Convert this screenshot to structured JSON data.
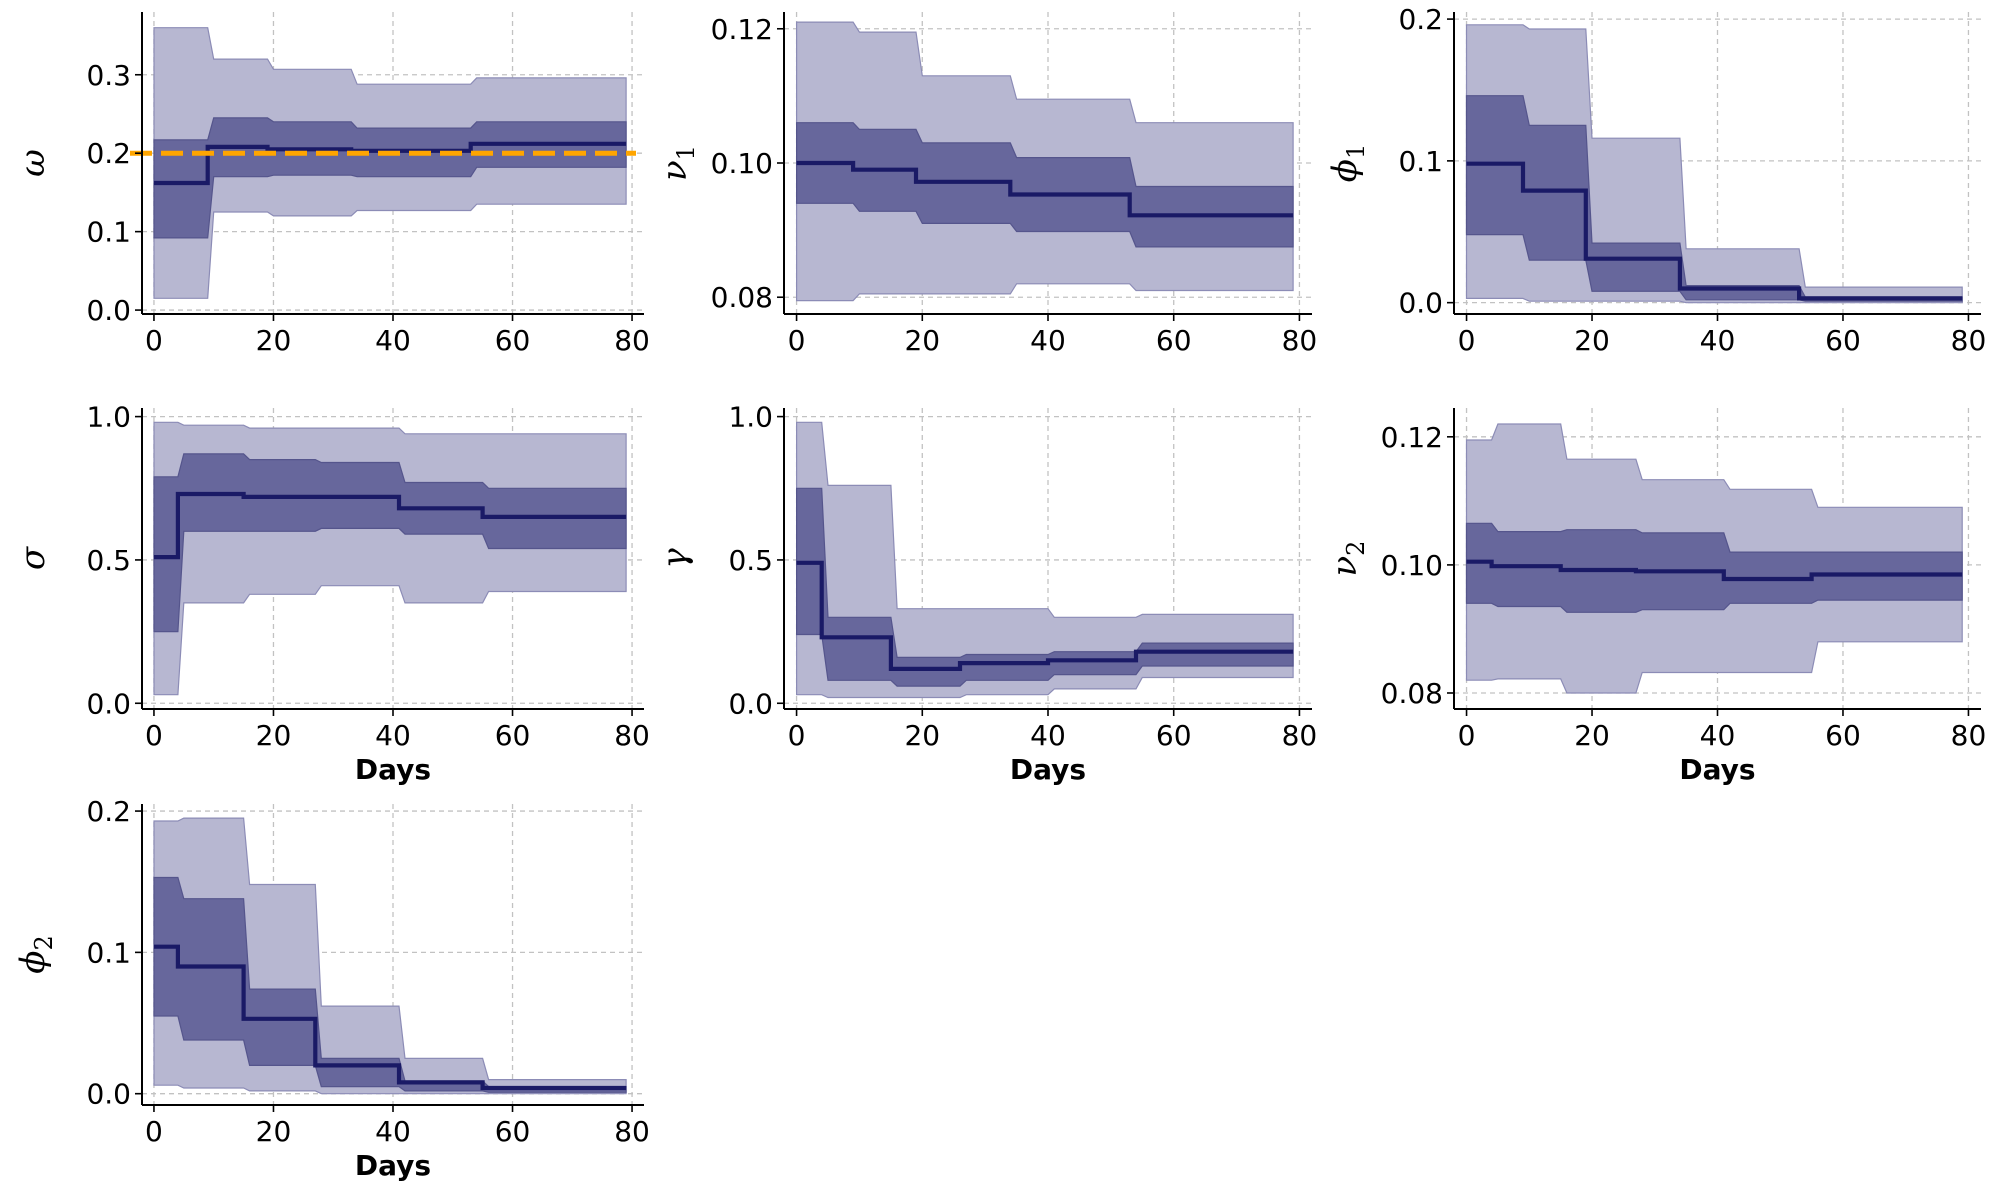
{
  "colors": {
    "outer_band": "#b7b7d1",
    "inner_band": "#67679c",
    "median": "#1a1a66",
    "truth": "#ffa500"
  },
  "chart_data": [
    {
      "type": "area",
      "symbol": "ω",
      "sub": "",
      "xlabel": "",
      "xlim": [
        -2,
        82
      ],
      "xticks": [
        "0",
        "20",
        "40",
        "60",
        "80"
      ],
      "ylim": [
        -0.005,
        0.38
      ],
      "yticks": [
        "0.0",
        "0.1",
        "0.2",
        "0.3"
      ],
      "yticks_v": [
        0.0,
        0.1,
        0.2,
        0.3
      ],
      "truth": 0.2,
      "segments": [
        {
          "x0": 0,
          "x1": 9,
          "med": 0.162,
          "lo50": 0.092,
          "hi50": 0.217,
          "lo95": 0.015,
          "hi95": 0.36
        },
        {
          "x0": 10,
          "x1": 19,
          "med": 0.208,
          "lo50": 0.17,
          "hi50": 0.245,
          "lo95": 0.125,
          "hi95": 0.32
        },
        {
          "x0": 20,
          "x1": 33,
          "med": 0.205,
          "lo50": 0.172,
          "hi50": 0.24,
          "lo95": 0.12,
          "hi95": 0.307
        },
        {
          "x0": 34,
          "x1": 53,
          "med": 0.203,
          "lo50": 0.17,
          "hi50": 0.232,
          "lo95": 0.127,
          "hi95": 0.288
        },
        {
          "x0": 54,
          "x1": 79,
          "med": 0.212,
          "lo50": 0.182,
          "hi50": 0.24,
          "lo95": 0.135,
          "hi95": 0.296
        }
      ]
    },
    {
      "type": "area",
      "symbol": "ν",
      "sub": "1",
      "xlabel": "",
      "xlim": [
        -2,
        82
      ],
      "xticks": [
        "0",
        "20",
        "40",
        "60",
        "80"
      ],
      "ylim": [
        0.0775,
        0.1225
      ],
      "yticks": [
        "0.08",
        "0.10",
        "0.12"
      ],
      "yticks_v": [
        0.08,
        0.1,
        0.12
      ],
      "segments": [
        {
          "x0": 0,
          "x1": 9,
          "med": 0.1,
          "lo50": 0.094,
          "hi50": 0.106,
          "lo95": 0.0795,
          "hi95": 0.121
        },
        {
          "x0": 10,
          "x1": 19,
          "med": 0.099,
          "lo50": 0.0928,
          "hi50": 0.105,
          "lo95": 0.0805,
          "hi95": 0.1195
        },
        {
          "x0": 20,
          "x1": 34,
          "med": 0.0972,
          "lo50": 0.091,
          "hi50": 0.103,
          "lo95": 0.0805,
          "hi95": 0.113
        },
        {
          "x0": 35,
          "x1": 53,
          "med": 0.0953,
          "lo50": 0.0898,
          "hi50": 0.1008,
          "lo95": 0.082,
          "hi95": 0.1095
        },
        {
          "x0": 54,
          "x1": 79,
          "med": 0.0922,
          "lo50": 0.0875,
          "hi50": 0.0965,
          "lo95": 0.081,
          "hi95": 0.106
        }
      ]
    },
    {
      "type": "area",
      "symbol": "ϕ",
      "sub": "1",
      "xlabel": "",
      "xlim": [
        -2,
        82
      ],
      "xticks": [
        "0",
        "20",
        "40",
        "60",
        "80"
      ],
      "ylim": [
        -0.008,
        0.205
      ],
      "yticks": [
        "0.0",
        "0.1",
        "0.2"
      ],
      "yticks_v": [
        0.0,
        0.1,
        0.2
      ],
      "segments": [
        {
          "x0": 0,
          "x1": 9,
          "med": 0.098,
          "lo50": 0.048,
          "hi50": 0.146,
          "lo95": 0.003,
          "hi95": 0.196
        },
        {
          "x0": 10,
          "x1": 19,
          "med": 0.079,
          "lo50": 0.03,
          "hi50": 0.125,
          "lo95": 0.001,
          "hi95": 0.193
        },
        {
          "x0": 20,
          "x1": 34,
          "med": 0.031,
          "lo50": 0.008,
          "hi50": 0.042,
          "lo95": 0.001,
          "hi95": 0.116
        },
        {
          "x0": 35,
          "x1": 53,
          "med": 0.01,
          "lo50": 0.002,
          "hi50": 0.012,
          "lo95": 0.0,
          "hi95": 0.038
        },
        {
          "x0": 54,
          "x1": 79,
          "med": 0.003,
          "lo50": 0.001,
          "hi50": 0.004,
          "lo95": 0.0,
          "hi95": 0.011
        }
      ]
    },
    {
      "type": "area",
      "symbol": "σ",
      "sub": "",
      "xlabel": "Days",
      "xlim": [
        -2,
        82
      ],
      "xticks": [
        "0",
        "20",
        "40",
        "60",
        "80"
      ],
      "ylim": [
        -0.02,
        1.03
      ],
      "yticks": [
        "0.0",
        "0.5",
        "1.0"
      ],
      "yticks_v": [
        0.0,
        0.5,
        1.0
      ],
      "segments": [
        {
          "x0": 0,
          "x1": 4,
          "med": 0.51,
          "lo50": 0.25,
          "hi50": 0.79,
          "lo95": 0.03,
          "hi95": 0.98
        },
        {
          "x0": 5,
          "x1": 15,
          "med": 0.73,
          "lo50": 0.6,
          "hi50": 0.87,
          "lo95": 0.35,
          "hi95": 0.97
        },
        {
          "x0": 16,
          "x1": 27,
          "med": 0.72,
          "lo50": 0.6,
          "hi50": 0.85,
          "lo95": 0.38,
          "hi95": 0.96
        },
        {
          "x0": 28,
          "x1": 41,
          "med": 0.72,
          "lo50": 0.61,
          "hi50": 0.84,
          "lo95": 0.41,
          "hi95": 0.96
        },
        {
          "x0": 42,
          "x1": 55,
          "med": 0.68,
          "lo50": 0.59,
          "hi50": 0.77,
          "lo95": 0.35,
          "hi95": 0.94
        },
        {
          "x0": 56,
          "x1": 79,
          "med": 0.65,
          "lo50": 0.54,
          "hi50": 0.75,
          "lo95": 0.39,
          "hi95": 0.94
        }
      ]
    },
    {
      "type": "area",
      "symbol": "γ",
      "sub": "",
      "xlabel": "Days",
      "xlim": [
        -2,
        82
      ],
      "xticks": [
        "0",
        "20",
        "40",
        "60",
        "80"
      ],
      "ylim": [
        -0.02,
        1.03
      ],
      "yticks": [
        "0.0",
        "0.5",
        "1.0"
      ],
      "yticks_v": [
        0.0,
        0.5,
        1.0
      ],
      "segments": [
        {
          "x0": 0,
          "x1": 4,
          "med": 0.49,
          "lo50": 0.24,
          "hi50": 0.75,
          "lo95": 0.03,
          "hi95": 0.98
        },
        {
          "x0": 5,
          "x1": 15,
          "med": 0.23,
          "lo50": 0.08,
          "hi50": 0.3,
          "lo95": 0.02,
          "hi95": 0.76
        },
        {
          "x0": 16,
          "x1": 26,
          "med": 0.12,
          "lo50": 0.06,
          "hi50": 0.16,
          "lo95": 0.02,
          "hi95": 0.33
        },
        {
          "x0": 27,
          "x1": 40,
          "med": 0.14,
          "lo50": 0.08,
          "hi50": 0.17,
          "lo95": 0.03,
          "hi95": 0.33
        },
        {
          "x0": 41,
          "x1": 54,
          "med": 0.15,
          "lo50": 0.1,
          "hi50": 0.18,
          "lo95": 0.05,
          "hi95": 0.3
        },
        {
          "x0": 55,
          "x1": 79,
          "med": 0.18,
          "lo50": 0.13,
          "hi50": 0.21,
          "lo95": 0.09,
          "hi95": 0.31
        }
      ]
    },
    {
      "type": "area",
      "symbol": "ν",
      "sub": "2",
      "xlabel": "Days",
      "xlim": [
        -2,
        82
      ],
      "xticks": [
        "0",
        "20",
        "40",
        "60",
        "80"
      ],
      "ylim": [
        0.0775,
        0.1245
      ],
      "yticks": [
        "0.08",
        "0.10",
        "0.12"
      ],
      "yticks_v": [
        0.08,
        0.1,
        0.12
      ],
      "segments": [
        {
          "x0": 0,
          "x1": 4,
          "med": 0.1005,
          "lo50": 0.094,
          "hi50": 0.1065,
          "lo95": 0.082,
          "hi95": 0.1195
        },
        {
          "x0": 5,
          "x1": 15,
          "med": 0.0998,
          "lo50": 0.0935,
          "hi50": 0.1052,
          "lo95": 0.0822,
          "hi95": 0.122
        },
        {
          "x0": 16,
          "x1": 27,
          "med": 0.0992,
          "lo50": 0.0926,
          "hi50": 0.1055,
          "lo95": 0.08,
          "hi95": 0.1165
        },
        {
          "x0": 28,
          "x1": 41,
          "med": 0.099,
          "lo50": 0.093,
          "hi50": 0.105,
          "lo95": 0.0832,
          "hi95": 0.1133
        },
        {
          "x0": 42,
          "x1": 55,
          "med": 0.0978,
          "lo50": 0.094,
          "hi50": 0.102,
          "lo95": 0.0832,
          "hi95": 0.1118
        },
        {
          "x0": 56,
          "x1": 79,
          "med": 0.0985,
          "lo50": 0.0945,
          "hi50": 0.102,
          "lo95": 0.088,
          "hi95": 0.109
        }
      ]
    },
    {
      "type": "area",
      "symbol": "ϕ",
      "sub": "2",
      "xlabel": "Days",
      "xlim": [
        -2,
        82
      ],
      "xticks": [
        "0",
        "20",
        "40",
        "60",
        "80"
      ],
      "ylim": [
        -0.008,
        0.205
      ],
      "yticks": [
        "0.0",
        "0.1",
        "0.2"
      ],
      "yticks_v": [
        0.0,
        0.1,
        0.2
      ],
      "segments": [
        {
          "x0": 0,
          "x1": 4,
          "med": 0.104,
          "lo50": 0.055,
          "hi50": 0.153,
          "lo95": 0.006,
          "hi95": 0.193
        },
        {
          "x0": 5,
          "x1": 15,
          "med": 0.09,
          "lo50": 0.038,
          "hi50": 0.138,
          "lo95": 0.004,
          "hi95": 0.195
        },
        {
          "x0": 16,
          "x1": 27,
          "med": 0.053,
          "lo50": 0.02,
          "hi50": 0.074,
          "lo95": 0.002,
          "hi95": 0.148
        },
        {
          "x0": 28,
          "x1": 41,
          "med": 0.02,
          "lo50": 0.005,
          "hi50": 0.025,
          "lo95": 0.0,
          "hi95": 0.062
        },
        {
          "x0": 42,
          "x1": 55,
          "med": 0.008,
          "lo50": 0.002,
          "hi50": 0.009,
          "lo95": 0.0,
          "hi95": 0.025
        },
        {
          "x0": 56,
          "x1": 79,
          "med": 0.004,
          "lo50": 0.001,
          "hi50": 0.005,
          "lo95": 0.0,
          "hi95": 0.01
        }
      ]
    }
  ]
}
